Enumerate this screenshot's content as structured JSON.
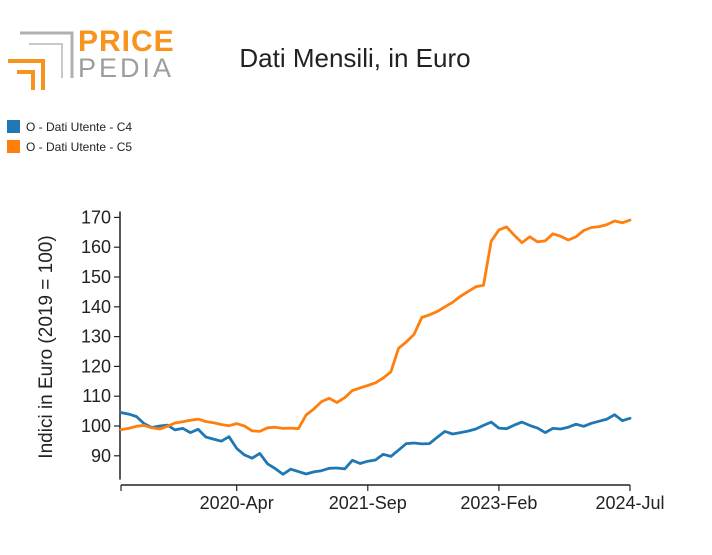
{
  "logo": {
    "line1": "PRICE",
    "line2": "PEDIA",
    "accent": "#f7941d",
    "gray": "#9d9d9d"
  },
  "chart_data": {
    "type": "line",
    "title": "Dati Mensili, in Euro",
    "xlabel": "",
    "ylabel": "Indici in Euro (2019 = 100)",
    "xlim": [
      "2019-01",
      "2024-07"
    ],
    "ylim": [
      82,
      172
    ],
    "yticks": [
      90,
      100,
      110,
      120,
      130,
      140,
      150,
      160,
      170
    ],
    "xticks": [
      {
        "label": "2020-Apr",
        "index": 15
      },
      {
        "label": "2021-Sep",
        "index": 32
      },
      {
        "label": "2023-Feb",
        "index": 49
      },
      {
        "label": "2024-Jul",
        "index": 66
      }
    ],
    "legend_position": "top-left",
    "grid": false,
    "x": [
      "2019-01",
      "2019-02",
      "2019-03",
      "2019-04",
      "2019-05",
      "2019-06",
      "2019-07",
      "2019-08",
      "2019-09",
      "2019-10",
      "2019-11",
      "2019-12",
      "2020-01",
      "2020-02",
      "2020-03",
      "2020-04",
      "2020-05",
      "2020-06",
      "2020-07",
      "2020-08",
      "2020-09",
      "2020-10",
      "2020-11",
      "2020-12",
      "2021-01",
      "2021-02",
      "2021-03",
      "2021-04",
      "2021-05",
      "2021-06",
      "2021-07",
      "2021-08",
      "2021-09",
      "2021-10",
      "2021-11",
      "2021-12",
      "2022-01",
      "2022-02",
      "2022-03",
      "2022-04",
      "2022-05",
      "2022-06",
      "2022-07",
      "2022-08",
      "2022-09",
      "2022-10",
      "2022-11",
      "2022-12",
      "2023-01",
      "2023-02",
      "2023-03",
      "2023-04",
      "2023-05",
      "2023-06",
      "2023-07",
      "2023-08",
      "2023-09",
      "2023-10",
      "2023-11",
      "2023-12",
      "2024-01",
      "2024-02",
      "2024-03",
      "2024-04",
      "2024-05",
      "2024-06",
      "2024-07"
    ],
    "series": [
      {
        "name": "O - Dati Utente - C4",
        "color": "#1f77b4",
        "values": [
          104.5,
          104.0,
          103.2,
          100.8,
          99.5,
          100.0,
          100.3,
          98.7,
          99.2,
          97.8,
          98.9,
          96.3,
          95.6,
          94.9,
          96.4,
          92.5,
          90.3,
          89.2,
          90.8,
          87.3,
          85.7,
          83.8,
          85.5,
          84.7,
          83.9,
          84.6,
          85.0,
          85.8,
          85.9,
          85.6,
          88.5,
          87.4,
          88.2,
          88.6,
          90.5,
          89.8,
          91.9,
          94.1,
          94.3,
          94.0,
          94.1,
          96.2,
          98.2,
          97.3,
          97.8,
          98.3,
          99.0,
          100.2,
          101.3,
          99.3,
          99.1,
          100.3,
          101.3,
          100.2,
          99.3,
          97.8,
          99.2,
          99.0,
          99.6,
          100.6,
          99.9,
          100.9,
          101.6,
          102.3,
          103.8,
          101.8,
          102.6
        ]
      },
      {
        "name": "O - Dati Utente - C5",
        "color": "#ff7f0e",
        "values": [
          98.8,
          99.2,
          99.9,
          100.2,
          99.4,
          99.0,
          99.9,
          101.0,
          101.4,
          101.9,
          102.3,
          101.5,
          101.1,
          100.5,
          100.1,
          100.8,
          100.0,
          98.4,
          98.2,
          99.4,
          99.6,
          99.2,
          99.3,
          99.1,
          103.7,
          105.7,
          108.2,
          109.3,
          107.9,
          109.5,
          111.9,
          112.8,
          113.6,
          114.5,
          116.1,
          118.2,
          126.1,
          128.2,
          130.8,
          136.4,
          137.3,
          138.4,
          140.0,
          141.5,
          143.5,
          145.1,
          146.7,
          147.2,
          162.0,
          165.8,
          166.8,
          164.0,
          161.5,
          163.5,
          161.8,
          162.1,
          164.5,
          163.7,
          162.4,
          163.5,
          165.6,
          166.6,
          166.9,
          167.6,
          168.8,
          168.2,
          169.1
        ]
      }
    ]
  }
}
